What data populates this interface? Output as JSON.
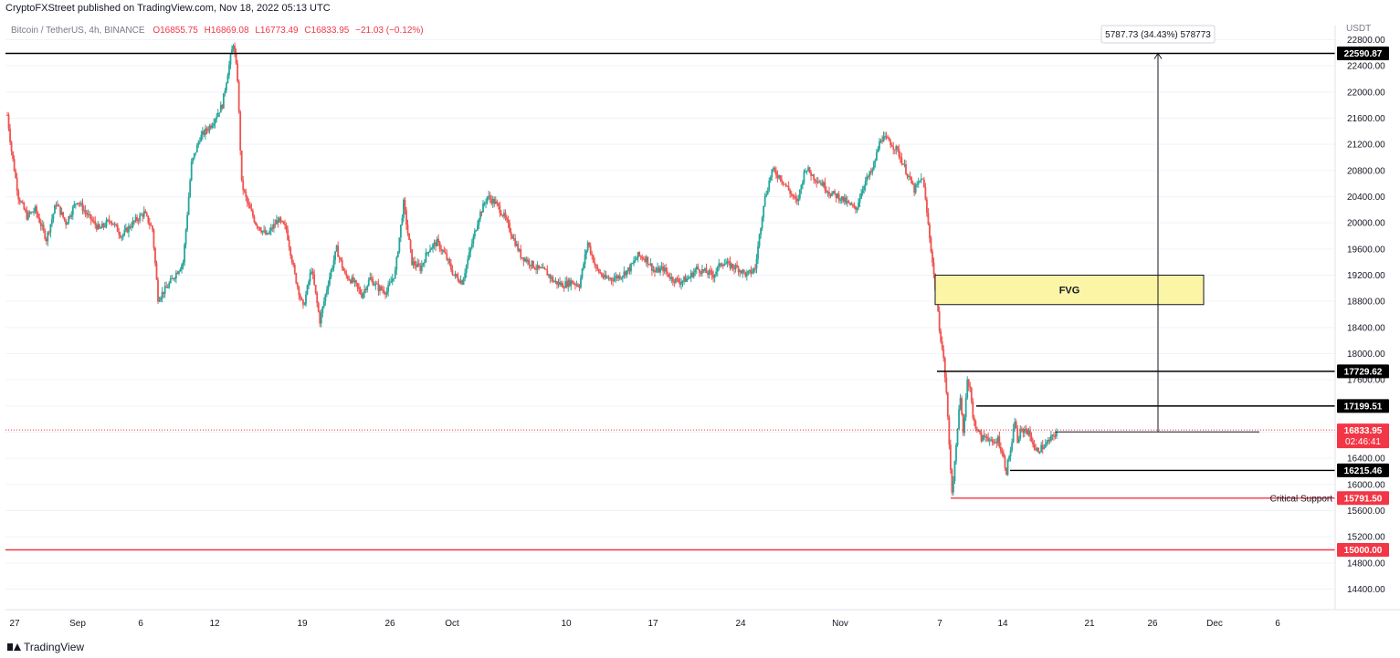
{
  "header": {
    "publisher_line": "CryptoFXStreet published on TradingView.com, Nov 18, 2022 05:13 UTC"
  },
  "footer": {
    "brand": "TradingView"
  },
  "chart_data": {
    "type": "candlestick",
    "symbol_line": "Bitcoin / TetherUS, 4h, BINANCE",
    "ohlc": {
      "o": "O16855.75",
      "h": "H16869.08",
      "l": "L16773.49",
      "c": "C16833.95",
      "chg": "−21.03 (−0.12%)"
    },
    "currency": "USDT",
    "ylim": [
      14000,
      22900
    ],
    "y_ticks": [
      22800,
      22400,
      22000,
      21600,
      21200,
      20800,
      20400,
      20000,
      19600,
      19200,
      18800,
      18400,
      18000,
      17600,
      17200,
      16800,
      16400,
      16000,
      15600,
      15200,
      14800,
      14400
    ],
    "x_ticks": [
      "27",
      "Sep",
      "6",
      "12",
      "19",
      "26",
      "Oct",
      "10",
      "17",
      "24",
      "Nov",
      "7",
      "14",
      "21",
      "26",
      "Dec",
      "6"
    ],
    "levels": [
      {
        "price": 22590.87,
        "label": "22590.87",
        "color": "#000000"
      },
      {
        "price": 17729.62,
        "label": "17729.62",
        "color": "#000000"
      },
      {
        "price": 17199.51,
        "label": "17199.51",
        "color": "#000000"
      },
      {
        "price": 16215.46,
        "label": "16215.46",
        "color": "#000000"
      },
      {
        "price": 15791.5,
        "label": "15791.50",
        "color": "#f23645",
        "annotation": "Critical Support"
      },
      {
        "price": 15000.0,
        "label": "15000.00",
        "color": "#f23645"
      }
    ],
    "last_price": {
      "price": 16833.95,
      "label": "16833.95",
      "countdown": "02:46:41",
      "color": "#f23645"
    },
    "fvg": {
      "label": "FVG",
      "top": 19200,
      "bottom": 18750,
      "color": "#fcf5a6"
    },
    "measure": {
      "label": "5787.73 (34.43%) 578773",
      "from": 16803,
      "to": 22590.87
    },
    "candle_colors": {
      "up": "#26a69a",
      "down": "#ef5350"
    },
    "price_path": [
      [
        0,
        21650
      ],
      [
        3,
        21100
      ],
      [
        8,
        20400
      ],
      [
        14,
        20100
      ],
      [
        20,
        20200
      ],
      [
        28,
        19750
      ],
      [
        35,
        20300
      ],
      [
        42,
        20000
      ],
      [
        50,
        20350
      ],
      [
        58,
        20100
      ],
      [
        66,
        19900
      ],
      [
        74,
        20050
      ],
      [
        82,
        19800
      ],
      [
        90,
        20000
      ],
      [
        98,
        20150
      ],
      [
        104,
        19900
      ],
      [
        108,
        18850
      ],
      [
        114,
        19000
      ],
      [
        120,
        19200
      ],
      [
        126,
        19400
      ],
      [
        132,
        20900
      ],
      [
        138,
        21300
      ],
      [
        146,
        21500
      ],
      [
        154,
        21800
      ],
      [
        158,
        22300
      ],
      [
        162,
        22750
      ],
      [
        165,
        22200
      ],
      [
        168,
        20600
      ],
      [
        172,
        20300
      ],
      [
        178,
        20000
      ],
      [
        186,
        19800
      ],
      [
        194,
        20050
      ],
      [
        200,
        19900
      ],
      [
        206,
        19200
      ],
      [
        212,
        18700
      ],
      [
        218,
        19300
      ],
      [
        224,
        18500
      ],
      [
        230,
        19100
      ],
      [
        236,
        19600
      ],
      [
        242,
        19200
      ],
      [
        248,
        19100
      ],
      [
        254,
        18900
      ],
      [
        260,
        19150
      ],
      [
        266,
        19000
      ],
      [
        272,
        18950
      ],
      [
        278,
        19250
      ],
      [
        284,
        20300
      ],
      [
        290,
        19400
      ],
      [
        296,
        19300
      ],
      [
        302,
        19600
      ],
      [
        308,
        19700
      ],
      [
        314,
        19500
      ],
      [
        320,
        19200
      ],
      [
        326,
        19100
      ],
      [
        332,
        19600
      ],
      [
        338,
        20100
      ],
      [
        344,
        20400
      ],
      [
        350,
        20300
      ],
      [
        356,
        20100
      ],
      [
        362,
        19800
      ],
      [
        368,
        19500
      ],
      [
        374,
        19400
      ],
      [
        380,
        19300
      ],
      [
        386,
        19250
      ],
      [
        392,
        19100
      ],
      [
        398,
        19050
      ],
      [
        404,
        19100
      ],
      [
        410,
        19050
      ],
      [
        416,
        19700
      ],
      [
        422,
        19300
      ],
      [
        428,
        19150
      ],
      [
        434,
        19150
      ],
      [
        440,
        19200
      ],
      [
        446,
        19300
      ],
      [
        452,
        19500
      ],
      [
        458,
        19450
      ],
      [
        464,
        19250
      ],
      [
        470,
        19300
      ],
      [
        476,
        19150
      ],
      [
        482,
        19100
      ],
      [
        488,
        19150
      ],
      [
        494,
        19300
      ],
      [
        500,
        19250
      ],
      [
        506,
        19200
      ],
      [
        512,
        19400
      ],
      [
        518,
        19350
      ],
      [
        524,
        19300
      ],
      [
        530,
        19200
      ],
      [
        536,
        19300
      ],
      [
        542,
        20300
      ],
      [
        548,
        20800
      ],
      [
        554,
        20700
      ],
      [
        560,
        20500
      ],
      [
        566,
        20300
      ],
      [
        572,
        20850
      ],
      [
        578,
        20700
      ],
      [
        584,
        20600
      ],
      [
        590,
        20450
      ],
      [
        596,
        20400
      ],
      [
        602,
        20300
      ],
      [
        608,
        20200
      ],
      [
        614,
        20600
      ],
      [
        620,
        20800
      ],
      [
        626,
        21300
      ],
      [
        632,
        21250
      ],
      [
        638,
        21100
      ],
      [
        644,
        20800
      ],
      [
        650,
        20500
      ],
      [
        656,
        20700
      ],
      [
        662,
        19600
      ],
      [
        665,
        19000
      ],
      [
        668,
        18400
      ],
      [
        671,
        17900
      ],
      [
        673,
        17400
      ],
      [
        675,
        16600
      ],
      [
        677,
        15900
      ],
      [
        679,
        16300
      ],
      [
        681,
        16900
      ],
      [
        683,
        17300
      ],
      [
        685,
        16800
      ],
      [
        688,
        17600
      ],
      [
        690,
        17500
      ],
      [
        692,
        17000
      ],
      [
        694,
        16900
      ],
      [
        698,
        16700
      ],
      [
        702,
        16750
      ],
      [
        706,
        16600
      ],
      [
        710,
        16700
      ],
      [
        714,
        16400
      ],
      [
        716,
        16200
      ],
      [
        718,
        16450
      ],
      [
        720,
        16600
      ],
      [
        722,
        17000
      ],
      [
        724,
        16650
      ],
      [
        726,
        16800
      ],
      [
        730,
        16850
      ],
      [
        734,
        16700
      ],
      [
        737,
        16500
      ],
      [
        740,
        16550
      ],
      [
        744,
        16600
      ],
      [
        748,
        16700
      ],
      [
        752,
        16800
      ]
    ]
  }
}
